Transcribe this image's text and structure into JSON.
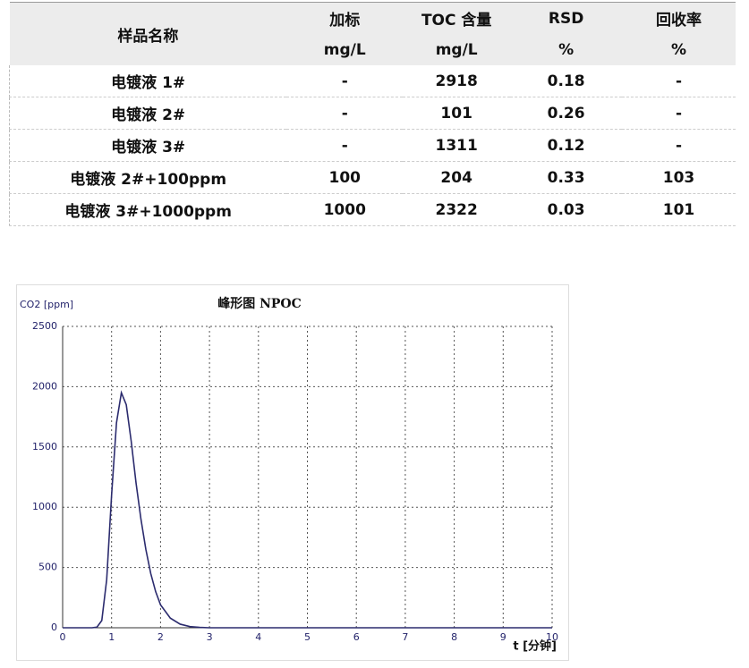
{
  "table": {
    "header": [
      [
        "样品名称",
        "加标",
        "TOC 含量",
        "RSD",
        "回收率"
      ],
      [
        "mg/L",
        "mg/L",
        "%",
        "%"
      ]
    ],
    "rows": [
      [
        "电镀液 1#",
        "-",
        "2918",
        "0.18",
        "-"
      ],
      [
        "电镀液 2#",
        "-",
        "101",
        "0.26",
        "-"
      ],
      [
        "电镀液 3#",
        "-",
        "1311",
        "0.12",
        "-"
      ],
      [
        "电镀液 2#+100ppm",
        "100",
        "204",
        "0.33",
        "103"
      ],
      [
        "电镀液 3#+1000ppm",
        "1000",
        "2322",
        "0.03",
        "101"
      ]
    ]
  },
  "chart_data": {
    "type": "line",
    "title": "峰形图 NPOC",
    "y_label": "CO2 [ppm]",
    "x_label": "t [分钟]",
    "x": [
      0,
      0.6,
      0.7,
      0.8,
      0.9,
      1.0,
      1.1,
      1.2,
      1.3,
      1.4,
      1.5,
      1.6,
      1.7,
      1.8,
      1.9,
      2.0,
      2.2,
      2.4,
      2.6,
      2.8,
      3.0,
      10
    ],
    "series": [
      {
        "color": "#2b2b6e",
        "values": [
          0,
          0,
          5,
          60,
          400,
          1100,
          1700,
          1950,
          1850,
          1550,
          1200,
          900,
          650,
          450,
          300,
          190,
          80,
          30,
          10,
          3,
          0,
          0
        ]
      }
    ],
    "xlim": [
      0,
      10
    ],
    "xticks": [
      0,
      1,
      2,
      3,
      4,
      5,
      6,
      7,
      8,
      9,
      10
    ],
    "ylim": [
      0,
      2500
    ],
    "yticks": [
      0,
      500,
      1000,
      1500,
      2000,
      2500
    ],
    "grid": true
  }
}
